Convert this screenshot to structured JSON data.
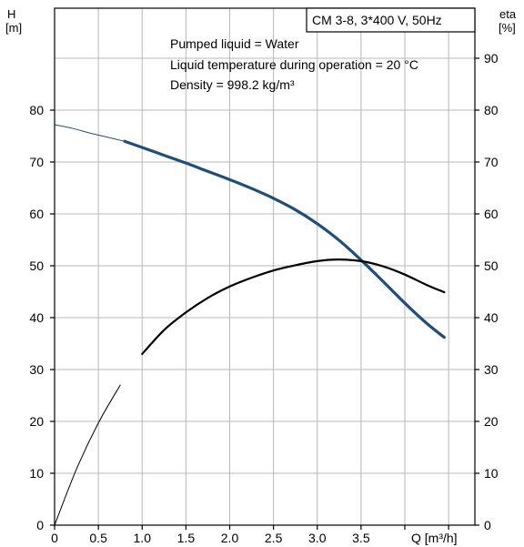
{
  "chart_data": {
    "type": "line",
    "legend": "CM 3-8, 3*400 V, 50Hz",
    "info_lines": [
      "Pumped liquid = Water",
      "Liquid temperature during operation = 20 °C",
      "Density = 998.2 kg/m³"
    ],
    "left_axis": {
      "title_line1": "H",
      "title_line2": "[m]",
      "ylim": [
        0,
        90
      ],
      "ticks": [
        "0",
        "10",
        "20",
        "30",
        "40",
        "50",
        "60",
        "70",
        "80"
      ]
    },
    "right_axis": {
      "title_line1": "eta",
      "title_line2": "[%]",
      "ylim": [
        0,
        90
      ],
      "ticks": [
        "0",
        "10",
        "20",
        "30",
        "40",
        "50",
        "60",
        "70",
        "80",
        "90"
      ]
    },
    "x_axis": {
      "title": "Q [m³/h]",
      "xlim": [
        0,
        4.8
      ],
      "ticks": [
        "0",
        "0.5",
        "1.0",
        "1.5",
        "2.0",
        "2.5",
        "3.0",
        "3.5"
      ]
    },
    "grid": true,
    "series": [
      {
        "id": "head",
        "axis": "left",
        "color": "#1f4e79",
        "x": [
          0,
          0.2,
          0.4,
          0.6,
          0.8,
          1.0,
          1.25,
          1.5,
          1.75,
          2.0,
          2.25,
          2.5,
          2.75,
          3.0,
          3.25,
          3.5,
          3.75,
          4.0,
          4.25,
          4.45
        ],
        "y": [
          77.2,
          76.5,
          75.6,
          74.8,
          74.0,
          72.8,
          71.3,
          69.8,
          68.2,
          66.6,
          64.9,
          63.0,
          60.8,
          58.1,
          54.9,
          51.1,
          47.0,
          42.8,
          38.9,
          36.2
        ],
        "bold_from_x": 0.8
      },
      {
        "id": "efficiency",
        "axis": "right",
        "color": "#000000",
        "x": [
          0,
          0.25,
          0.5,
          0.75,
          1.0,
          1.25,
          1.5,
          1.75,
          2.0,
          2.25,
          2.5,
          2.75,
          3.0,
          3.25,
          3.5,
          3.75,
          4.0,
          4.25,
          4.45
        ],
        "y": [
          0,
          10.8,
          19.7,
          27.0,
          33.0,
          37.6,
          41.0,
          43.8,
          46.0,
          47.7,
          49.1,
          50.1,
          50.9,
          51.2,
          50.9,
          49.9,
          48.3,
          46.3,
          44.9
        ],
        "bold_from_x": 0.8
      }
    ]
  }
}
